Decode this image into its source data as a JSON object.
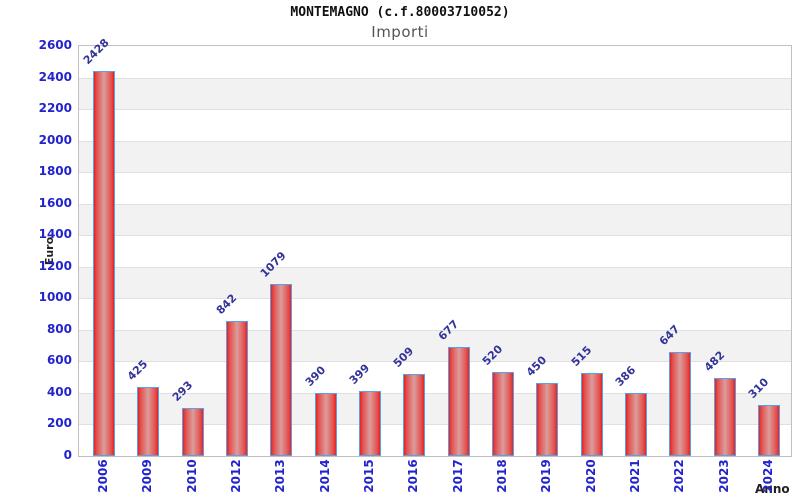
{
  "title": "MONTEMAGNO (c.f.80003710052)",
  "subtitle": "Importi",
  "chart_data": {
    "type": "bar",
    "title": "MONTEMAGNO (c.f.80003710052)",
    "subtitle": "Importi",
    "xlabel": "Anno",
    "ylabel": "Euro",
    "categories": [
      "2006",
      "2009",
      "2010",
      "2012",
      "2013",
      "2014",
      "2015",
      "2016",
      "2017",
      "2018",
      "2019",
      "2020",
      "2021",
      "2022",
      "2023",
      "2024"
    ],
    "values": [
      2428,
      425,
      293,
      842,
      1079,
      390,
      399,
      509,
      677,
      520,
      450,
      515,
      386,
      647,
      482,
      310
    ],
    "ylim": [
      0,
      2600
    ],
    "ytick_step": 200,
    "yticks": [
      0,
      200,
      400,
      600,
      800,
      1000,
      1200,
      1400,
      1600,
      1800,
      2000,
      2200,
      2400,
      2600
    ],
    "grid": true,
    "legend": false,
    "plot_bands_alternating": true,
    "value_labels_rotated_45deg": true,
    "x_labels_rotated_90deg": true,
    "colors": {
      "bar-edge": "#e82020",
      "bar-mid": "#dc9c9c",
      "barborder": "#58a0e8",
      "tick": "#2323cc",
      "vlabel": "#333399",
      "band": "#f2f2f2",
      "grid": "#e0e0e0",
      "frame": "#c0c0c0",
      "title": "#111111",
      "subtitle": "#555555",
      "axistitle": "#222222"
    }
  }
}
